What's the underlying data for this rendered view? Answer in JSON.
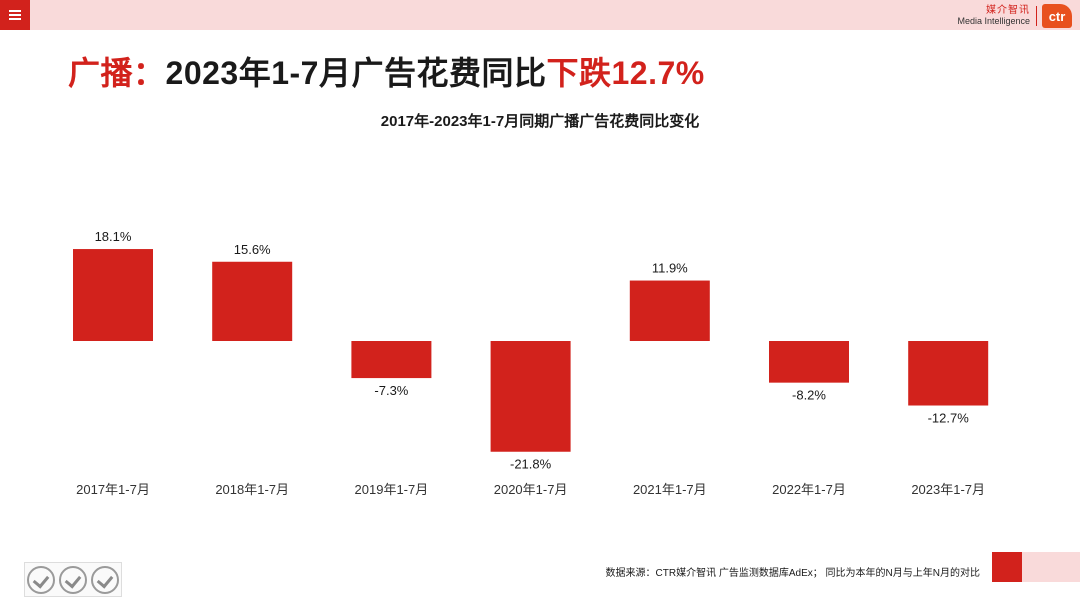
{
  "header": {
    "brand_cn": "媒介智讯",
    "brand_en": "Media Intelligence",
    "logo_text": "ctr"
  },
  "headline": {
    "part1": "广播：",
    "part2": "2023年1-7月广告花费同比",
    "part3": "下跌12.7%"
  },
  "colors": {
    "accent": "#d2221c",
    "pink": "#f9dada",
    "logo_orange": "#e8501e"
  },
  "chart_data": {
    "type": "bar",
    "title": "2017年-2023年1-7月同期广播广告花费同比变化",
    "categories": [
      "2017年1-7月",
      "2018年1-7月",
      "2019年1-7月",
      "2020年1-7月",
      "2021年1-7月",
      "2022年1-7月",
      "2023年1-7月"
    ],
    "values": [
      18.1,
      15.6,
      -7.3,
      -21.8,
      11.9,
      -8.2,
      -12.7
    ],
    "labels": [
      "18.1%",
      "15.6%",
      "-7.3%",
      "-21.8%",
      "11.9%",
      "-8.2%",
      "-12.7%"
    ],
    "xlabel": "",
    "ylabel": "",
    "ylim": [
      -25,
      25
    ],
    "color": "#d2221c"
  },
  "footer": {
    "source": "数据来源：CTR媒介智讯 广告监测数据库AdEx；  同比为本年的N月与上年N月的对比"
  }
}
